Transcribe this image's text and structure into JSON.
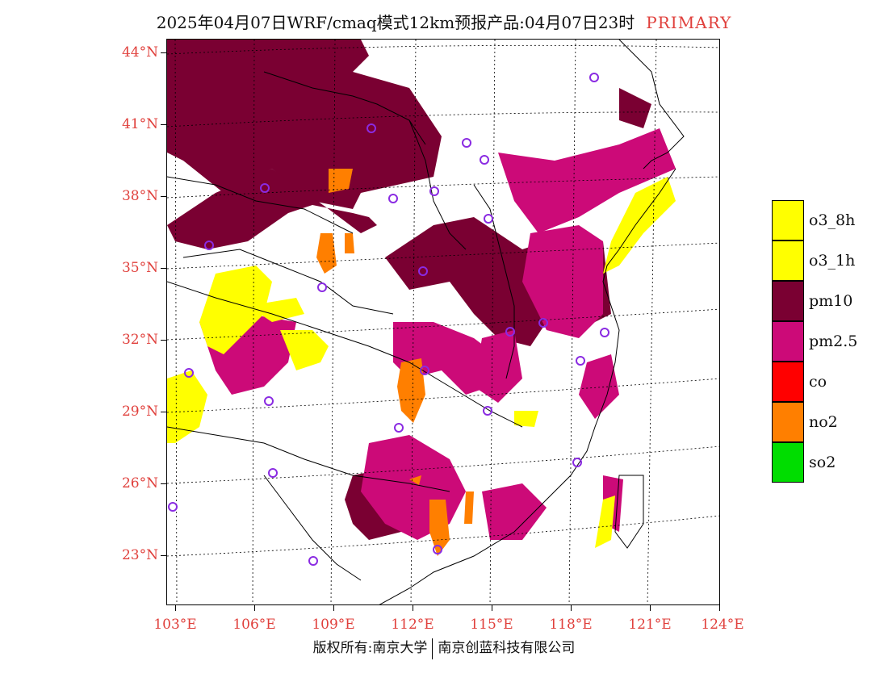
{
  "header": {
    "title": "2025年04月07日WRF/cmaq模式12km预报产品:04月07日23时",
    "tag": "PRIMARY"
  },
  "map": {
    "lat_labels": [
      "44°N",
      "41°N",
      "38°N",
      "35°N",
      "32°N",
      "29°N",
      "26°N",
      "23°N"
    ],
    "lon_labels": [
      "103°E",
      "106°E",
      "109°E",
      "112°E",
      "115°E",
      "118°E",
      "121°E",
      "124°E"
    ],
    "colors": {
      "pm10": "#7a0032",
      "pm25": "#cc0a78",
      "o3": "#ffff00",
      "no2": "#ff7f00",
      "station": "#8a2be2",
      "label": "#e0403c"
    }
  },
  "legend": {
    "items": [
      {
        "label": "o3_8h",
        "color": "#ffff00"
      },
      {
        "label": "o3_1h",
        "color": "#ffff00"
      },
      {
        "label": "pm10",
        "color": "#7a0032"
      },
      {
        "label": "pm2.5",
        "color": "#cc0a78"
      },
      {
        "label": "co",
        "color": "#ff0000"
      },
      {
        "label": "no2",
        "color": "#ff7f00"
      },
      {
        "label": "so2",
        "color": "#00dd00"
      }
    ]
  },
  "footer": {
    "left": "版权所有:南京大学",
    "right": "南京创蓝科技有限公司"
  }
}
